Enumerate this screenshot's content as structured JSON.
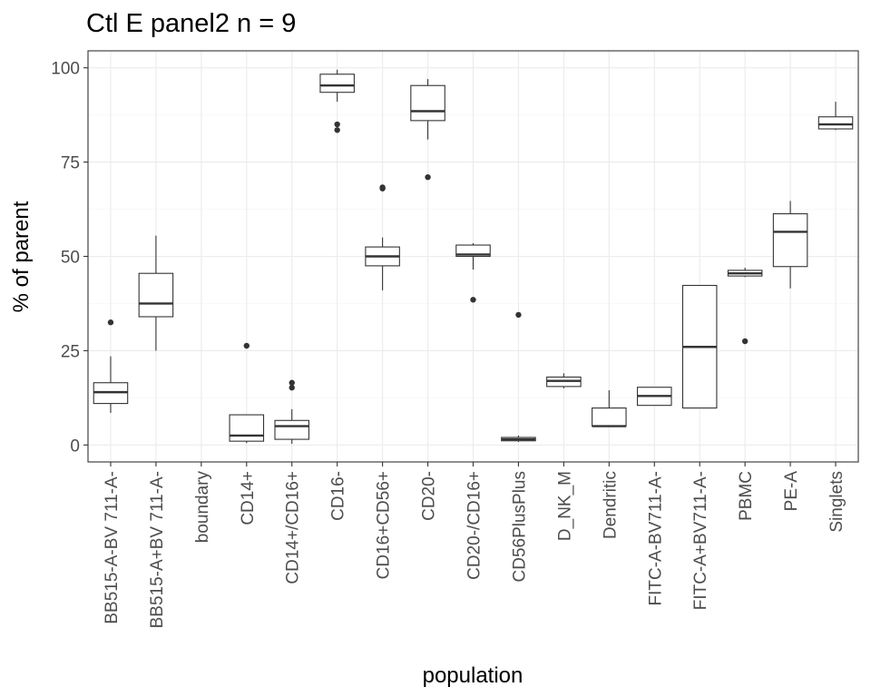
{
  "chart_data": {
    "type": "box",
    "title": "Ctl E panel2 n = 9",
    "xlabel": "population",
    "ylabel": "% of parent",
    "ylim": [
      -4.5,
      104.5
    ],
    "yticks": [
      0,
      25,
      50,
      75,
      100
    ],
    "grid": true,
    "legend": "none",
    "categories": [
      "BB515-A-BV 711-A-",
      "BB515-A+BV 711-A-",
      "boundary",
      "CD14+",
      "CD14+/CD16+",
      "CD16-",
      "CD16+CD56+",
      "CD20-",
      "CD20-/CD16+",
      "CD56PlusPlus",
      "D_NK_M",
      "Dendritic",
      "FITC-A-BV711-A-",
      "FITC-A+BV711-A-",
      "PBMC",
      "PE-A",
      "Singlets"
    ],
    "boxes": [
      {
        "min": 8.5,
        "q1": 11,
        "median": 14,
        "q3": 16.5,
        "max": 23.5,
        "outliers": [
          32.5
        ]
      },
      {
        "min": 25,
        "q1": 34,
        "median": 37.5,
        "q3": 45.5,
        "max": 55.5,
        "outliers": []
      },
      null,
      {
        "min": 0.5,
        "q1": 1,
        "median": 2.5,
        "q3": 8,
        "max": 8,
        "outliers": [
          26.3
        ]
      },
      {
        "min": 0.3,
        "q1": 1.5,
        "median": 5,
        "q3": 6.5,
        "max": 9.5,
        "outliers": [
          15.2,
          16.5
        ]
      },
      {
        "min": 91,
        "q1": 93.5,
        "median": 95.3,
        "q3": 98.3,
        "max": 99.5,
        "outliers": [
          83.5,
          85
        ]
      },
      {
        "min": 41,
        "q1": 47.5,
        "median": 50,
        "q3": 52.5,
        "max": 55,
        "outliers": [
          68,
          68.3
        ]
      },
      {
        "min": 81,
        "q1": 86,
        "median": 88.5,
        "q3": 95.3,
        "max": 97,
        "outliers": [
          71
        ]
      },
      {
        "min": 46.5,
        "q1": 50,
        "median": 50.5,
        "q3": 53,
        "max": 53.5,
        "outliers": [
          38.5
        ]
      },
      {
        "min": 0.8,
        "q1": 1.1,
        "median": 1.5,
        "q3": 2,
        "max": 2.5,
        "outliers": [
          34.5
        ]
      },
      {
        "min": 15,
        "q1": 15.5,
        "median": 17,
        "q3": 18,
        "max": 19,
        "outliers": []
      },
      {
        "min": 5,
        "q1": 5,
        "median": 5,
        "q3": 9.8,
        "max": 14.5,
        "outliers": []
      },
      {
        "min": 10.5,
        "q1": 10.5,
        "median": 13,
        "q3": 15.3,
        "max": 15.3,
        "outliers": []
      },
      {
        "min": 9.8,
        "q1": 9.8,
        "median": 26,
        "q3": 42.3,
        "max": 42.3,
        "outliers": []
      },
      {
        "min": 44.5,
        "q1": 44.8,
        "median": 45.5,
        "q3": 46.3,
        "max": 47,
        "outliers": [
          27.5
        ]
      },
      {
        "min": 41.5,
        "q1": 47.3,
        "median": 56.5,
        "q3": 61.3,
        "max": 64.7,
        "outliers": []
      },
      {
        "min": 83.5,
        "q1": 83.8,
        "median": 85,
        "q3": 87,
        "max": 91,
        "outliers": []
      }
    ]
  }
}
